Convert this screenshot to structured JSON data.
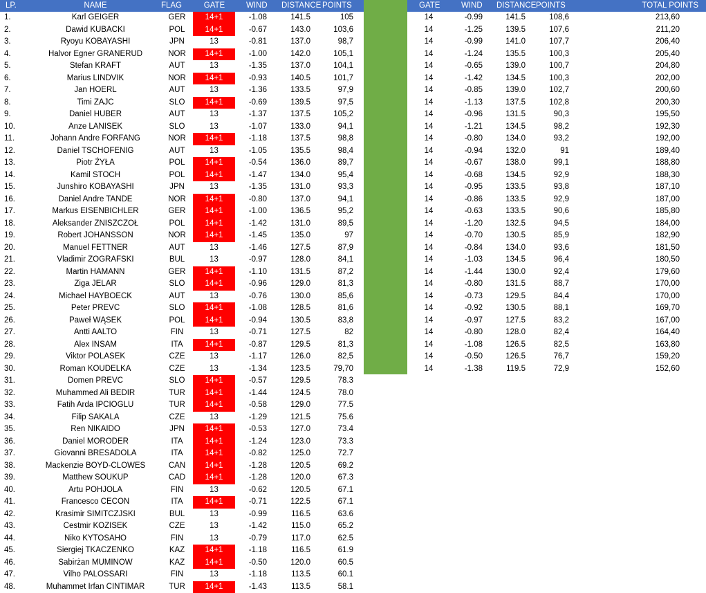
{
  "headers": {
    "lp": "LP.",
    "name": "NAME",
    "flag": "FLAG",
    "gate": "GATE",
    "wind": "WIND",
    "distance": "DISTANCE",
    "points": "POINTS",
    "gate2": "GATE",
    "wind2": "WIND",
    "distance2": "DISTANCE",
    "points2": "POINTS",
    "total": "TOTAL POINTS"
  },
  "colors": {
    "header_bg": "#4472c4",
    "gate_highlight": "#ff0000",
    "separator_green": "#70ad47"
  },
  "rows": [
    {
      "lp": "1.",
      "name": "Karl GEIGER",
      "flag": "GER",
      "gate": "14+1",
      "wind": "-1.08",
      "distance": "141.5",
      "points": "105",
      "gate2": "14",
      "wind2": "-0.99",
      "distance2": "141.5",
      "points2": "108,6",
      "total": "213,60"
    },
    {
      "lp": "2.",
      "name": "Dawid KUBACKI",
      "flag": "POL",
      "gate": "14+1",
      "wind": "-0.67",
      "distance": "143.0",
      "points": "103,6",
      "gate2": "14",
      "wind2": "-1.25",
      "distance2": "139.5",
      "points2": "107,6",
      "total": "211,20"
    },
    {
      "lp": "3.",
      "name": "Ryoyu KOBAYASHI",
      "flag": "JPN",
      "gate": "13",
      "wind": "-0.81",
      "distance": "137.0",
      "points": "98,7",
      "gate2": "14",
      "wind2": "-0.99",
      "distance2": "141.0",
      "points2": "107,7",
      "total": "206,40"
    },
    {
      "lp": "4.",
      "name": "Halvor Egner GRANERUD",
      "flag": "NOR",
      "gate": "14+1",
      "wind": "-1.00",
      "distance": "142.0",
      "points": "105,1",
      "gate2": "14",
      "wind2": "-1.24",
      "distance2": "135.5",
      "points2": "100,3",
      "total": "205,40"
    },
    {
      "lp": "5.",
      "name": "Stefan KRAFT",
      "flag": "AUT",
      "gate": "13",
      "wind": "-1.35",
      "distance": "137.0",
      "points": "104,1",
      "gate2": "14",
      "wind2": "-0.65",
      "distance2": "139.0",
      "points2": "100,7",
      "total": "204,80"
    },
    {
      "lp": "6.",
      "name": "Marius LINDVIK",
      "flag": "NOR",
      "gate": "14+1",
      "wind": "-0.93",
      "distance": "140.5",
      "points": "101,7",
      "gate2": "14",
      "wind2": "-1.42",
      "distance2": "134.5",
      "points2": "100,3",
      "total": "202,00"
    },
    {
      "lp": "7.",
      "name": "Jan HOERL",
      "flag": "AUT",
      "gate": "13",
      "wind": "-1.36",
      "distance": "133.5",
      "points": "97,9",
      "gate2": "14",
      "wind2": "-0.85",
      "distance2": "139.0",
      "points2": "102,7",
      "total": "200,60"
    },
    {
      "lp": "8.",
      "name": "Timi ZAJC",
      "flag": "SLO",
      "gate": "14+1",
      "wind": "-0.69",
      "distance": "139.5",
      "points": "97,5",
      "gate2": "14",
      "wind2": "-1.13",
      "distance2": "137.5",
      "points2": "102,8",
      "total": "200,30"
    },
    {
      "lp": "9.",
      "name": "Daniel HUBER",
      "flag": "AUT",
      "gate": "13",
      "wind": "-1.37",
      "distance": "137.5",
      "points": "105,2",
      "gate2": "14",
      "wind2": "-0.96",
      "distance2": "131.5",
      "points2": "90,3",
      "total": "195,50"
    },
    {
      "lp": "10.",
      "name": "Anze LANISEK",
      "flag": "SLO",
      "gate": "13",
      "wind": "-1.07",
      "distance": "133.0",
      "points": "94,1",
      "gate2": "14",
      "wind2": "-1.21",
      "distance2": "134.5",
      "points2": "98,2",
      "total": "192,30"
    },
    {
      "lp": "11.",
      "name": "Johann Andre FORFANG",
      "flag": "NOR",
      "gate": "14+1",
      "wind": "-1.18",
      "distance": "137.5",
      "points": "98,8",
      "gate2": "14",
      "wind2": "-0.80",
      "distance2": "134.0",
      "points2": "93,2",
      "total": "192,00"
    },
    {
      "lp": "12.",
      "name": "Daniel TSCHOFENIG",
      "flag": "AUT",
      "gate": "13",
      "wind": "-1.05",
      "distance": "135.5",
      "points": "98,4",
      "gate2": "14",
      "wind2": "-0.94",
      "distance2": "132.0",
      "points2": "91",
      "total": "189,40"
    },
    {
      "lp": "13.",
      "name": "Piotr ŻYŁA",
      "flag": "POL",
      "gate": "14+1",
      "wind": "-0.54",
      "distance": "136.0",
      "points": "89,7",
      "gate2": "14",
      "wind2": "-0.67",
      "distance2": "138.0",
      "points2": "99,1",
      "total": "188,80"
    },
    {
      "lp": "14.",
      "name": "Kamil STOCH",
      "flag": "POL",
      "gate": "14+1",
      "wind": "-1.47",
      "distance": "134.0",
      "points": "95,4",
      "gate2": "14",
      "wind2": "-0.68",
      "distance2": "134.5",
      "points2": "92,9",
      "total": "188,30"
    },
    {
      "lp": "15.",
      "name": "Junshiro KOBAYASHI",
      "flag": "JPN",
      "gate": "13",
      "wind": "-1.35",
      "distance": "131.0",
      "points": "93,3",
      "gate2": "14",
      "wind2": "-0.95",
      "distance2": "133.5",
      "points2": "93,8",
      "total": "187,10"
    },
    {
      "lp": "16.",
      "name": "Daniel Andre TANDE",
      "flag": "NOR",
      "gate": "14+1",
      "wind": "-0.80",
      "distance": "137.0",
      "points": "94,1",
      "gate2": "14",
      "wind2": "-0.86",
      "distance2": "133.5",
      "points2": "92,9",
      "total": "187,00"
    },
    {
      "lp": "17.",
      "name": "Markus EISENBICHLER",
      "flag": "GER",
      "gate": "14+1",
      "wind": "-1.00",
      "distance": "136.5",
      "points": "95,2",
      "gate2": "14",
      "wind2": "-0.63",
      "distance2": "133.5",
      "points2": "90,6",
      "total": "185,80"
    },
    {
      "lp": "18.",
      "name": "Aleksander ZNISZCZOŁ",
      "flag": "POL",
      "gate": "14+1",
      "wind": "-1.42",
      "distance": "131.0",
      "points": "89,5",
      "gate2": "14",
      "wind2": "-1.20",
      "distance2": "132.5",
      "points2": "94,5",
      "total": "184,00"
    },
    {
      "lp": "19.",
      "name": "Robert JOHANSSON",
      "flag": "NOR",
      "gate": "14+1",
      "wind": "-1.45",
      "distance": "135.0",
      "points": "97",
      "gate2": "14",
      "wind2": "-0.70",
      "distance2": "130.5",
      "points2": "85,9",
      "total": "182,90"
    },
    {
      "lp": "20.",
      "name": "Manuel FETTNER",
      "flag": "AUT",
      "gate": "13",
      "wind": "-1.46",
      "distance": "127.5",
      "points": "87,9",
      "gate2": "14",
      "wind2": "-0.84",
      "distance2": "134.0",
      "points2": "93,6",
      "total": "181,50"
    },
    {
      "lp": "21.",
      "name": "Vladimir ZOGRAFSKI",
      "flag": "BUL",
      "gate": "13",
      "wind": "-0.97",
      "distance": "128.0",
      "points": "84,1",
      "gate2": "14",
      "wind2": "-1.03",
      "distance2": "134.5",
      "points2": "96,4",
      "total": "180,50"
    },
    {
      "lp": "22.",
      "name": "Martin HAMANN",
      "flag": "GER",
      "gate": "14+1",
      "wind": "-1.10",
      "distance": "131.5",
      "points": "87,2",
      "gate2": "14",
      "wind2": "-1.44",
      "distance2": "130.0",
      "points2": "92,4",
      "total": "179,60"
    },
    {
      "lp": "23.",
      "name": "Ziga JELAR",
      "flag": "SLO",
      "gate": "14+1",
      "wind": "-0.96",
      "distance": "129.0",
      "points": "81,3",
      "gate2": "14",
      "wind2": "-0.80",
      "distance2": "131.5",
      "points2": "88,7",
      "total": "170,00"
    },
    {
      "lp": "24.",
      "name": "Michael HAYBOECK",
      "flag": "AUT",
      "gate": "13",
      "wind": "-0.76",
      "distance": "130.0",
      "points": "85,6",
      "gate2": "14",
      "wind2": "-0.73",
      "distance2": "129.5",
      "points2": "84,4",
      "total": "170,00"
    },
    {
      "lp": "25.",
      "name": "Peter PREVC",
      "flag": "SLO",
      "gate": "14+1",
      "wind": "-1.08",
      "distance": "128.5",
      "points": "81,6",
      "gate2": "14",
      "wind2": "-0.92",
      "distance2": "130.5",
      "points2": "88,1",
      "total": "169,70"
    },
    {
      "lp": "26.",
      "name": "Paweł WĄSEK",
      "flag": "POL",
      "gate": "14+1",
      "wind": "-0.94",
      "distance": "130.5",
      "points": "83,8",
      "gate2": "14",
      "wind2": "-0.97",
      "distance2": "127.5",
      "points2": "83,2",
      "total": "167,00"
    },
    {
      "lp": "27.",
      "name": "Antti AALTO",
      "flag": "FIN",
      "gate": "13",
      "wind": "-0.71",
      "distance": "127.5",
      "points": "82",
      "gate2": "14",
      "wind2": "-0.80",
      "distance2": "128.0",
      "points2": "82,4",
      "total": "164,40"
    },
    {
      "lp": "28.",
      "name": "Alex INSAM",
      "flag": "ITA",
      "gate": "14+1",
      "wind": "-0.87",
      "distance": "129.5",
      "points": "81,3",
      "gate2": "14",
      "wind2": "-1.08",
      "distance2": "126.5",
      "points2": "82,5",
      "total": "163,80"
    },
    {
      "lp": "29.",
      "name": "Viktor POLASEK",
      "flag": "CZE",
      "gate": "13",
      "wind": "-1.17",
      "distance": "126.0",
      "points": "82,5",
      "gate2": "14",
      "wind2": "-0.50",
      "distance2": "126.5",
      "points2": "76,7",
      "total": "159,20"
    },
    {
      "lp": "30.",
      "name": "Roman KOUDELKA",
      "flag": "CZE",
      "gate": "13",
      "wind": "-1.34",
      "distance": "123.5",
      "points": "79,70",
      "gate2": "14",
      "wind2": "-1.38",
      "distance2": "119.5",
      "points2": "72,9",
      "total": "152,60"
    },
    {
      "lp": "31.",
      "name": "Domen PREVC",
      "flag": "SLO",
      "gate": "14+1",
      "wind": "-0.57",
      "distance": "129.5",
      "points": "78.3"
    },
    {
      "lp": "32.",
      "name": "Muhammed Ali BEDIR",
      "flag": "TUR",
      "gate": "14+1",
      "wind": "-1.44",
      "distance": "124.5",
      "points": "78.0"
    },
    {
      "lp": "33.",
      "name": "Fatih Arda IPCIOGLU",
      "flag": "TUR",
      "gate": "14+1",
      "wind": "-0.58",
      "distance": "129.0",
      "points": "77.5"
    },
    {
      "lp": "34.",
      "name": "Filip SAKALA",
      "flag": "CZE",
      "gate": "13",
      "wind": "-1.29",
      "distance": "121.5",
      "points": "75.6"
    },
    {
      "lp": "35.",
      "name": "Ren NIKAIDO",
      "flag": "JPN",
      "gate": "14+1",
      "wind": "-0.53",
      "distance": "127.0",
      "points": "73.4"
    },
    {
      "lp": "36.",
      "name": "Daniel MORODER",
      "flag": "ITA",
      "gate": "14+1",
      "wind": "-1.24",
      "distance": "123.0",
      "points": "73.3"
    },
    {
      "lp": "37.",
      "name": "Giovanni BRESADOLA",
      "flag": "ITA",
      "gate": "14+1",
      "wind": "-0.82",
      "distance": "125.0",
      "points": "72.7"
    },
    {
      "lp": "38.",
      "name": "Mackenzie BOYD-CLOWES",
      "flag": "CAN",
      "gate": "14+1",
      "wind": "-1.28",
      "distance": "120.5",
      "points": "69.2"
    },
    {
      "lp": "39.",
      "name": "Matthew SOUKUP",
      "flag": "CAD",
      "gate": "14+1",
      "wind": "-1.28",
      "distance": "120.0",
      "points": "67.3"
    },
    {
      "lp": "40.",
      "name": "Artu POHJOLA",
      "flag": "FIN",
      "gate": "13",
      "wind": "-0.62",
      "distance": "120.5",
      "points": "67.1"
    },
    {
      "lp": "41.",
      "name": "Francesco CECON",
      "flag": "ITA",
      "gate": "14+1",
      "wind": "-0.71",
      "distance": "122.5",
      "points": "67.1"
    },
    {
      "lp": "42.",
      "name": "Krasimir SIMITCZJSKI",
      "flag": "BUL",
      "gate": "13",
      "wind": "-0.99",
      "distance": "116.5",
      "points": "63.6"
    },
    {
      "lp": "43.",
      "name": "Cestmir KOZISEK",
      "flag": "CZE",
      "gate": "13",
      "wind": "-1.42",
      "distance": "115.0",
      "points": "65.2"
    },
    {
      "lp": "44.",
      "name": "Niko KYTOSAHO",
      "flag": "FIN",
      "gate": "13",
      "wind": "-0.79",
      "distance": "117.0",
      "points": "62.5"
    },
    {
      "lp": "45.",
      "name": "Siergiej TKACZENKO",
      "flag": "KAZ",
      "gate": "14+1",
      "wind": "-1.18",
      "distance": "116.5",
      "points": "61.9"
    },
    {
      "lp": "46.",
      "name": "Sabirżan MUMINOW",
      "flag": "KAZ",
      "gate": "14+1",
      "wind": "-0.50",
      "distance": "120.0",
      "points": "60.5"
    },
    {
      "lp": "47.",
      "name": "Vilho PALOSSARI",
      "flag": "FIN",
      "gate": "13",
      "wind": "-1.18",
      "distance": "113.5",
      "points": "60.1"
    },
    {
      "lp": "48.",
      "name": "Muhammet Irfan CINTIMAR",
      "flag": "TUR",
      "gate": "14+1",
      "wind": "-1.43",
      "distance": "113.5",
      "points": "58.1"
    }
  ]
}
